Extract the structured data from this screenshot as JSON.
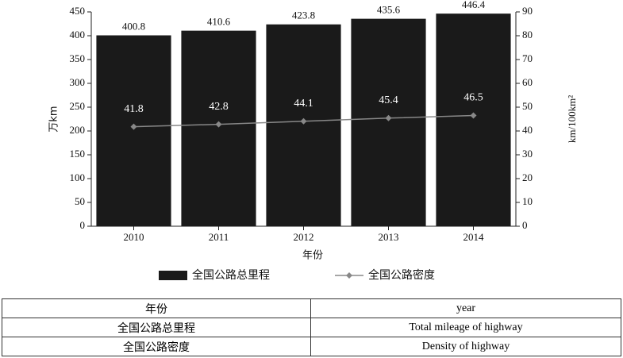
{
  "chart_data": {
    "type": "bar_line",
    "categories": [
      "2010",
      "2011",
      "2012",
      "2013",
      "2014"
    ],
    "xlabel": "年份",
    "ylabel": "万km",
    "y2label": "km/100km²",
    "series": [
      {
        "name": "全国公路总里程",
        "type": "bar",
        "color": "#1a1a1a",
        "values": [
          400.8,
          410.6,
          423.8,
          435.6,
          446.4
        ]
      },
      {
        "name": "全国公路密度",
        "type": "line",
        "axis": "y2",
        "color": "#888888",
        "values": [
          41.8,
          42.8,
          44.1,
          45.4,
          46.5
        ]
      }
    ],
    "ylim": [
      0,
      450
    ],
    "yticks": [
      0,
      50,
      100,
      150,
      200,
      250,
      300,
      350,
      400,
      450
    ],
    "y2lim": [
      0,
      90
    ],
    "y2ticks": [
      0,
      10,
      20,
      30,
      40,
      50,
      60,
      70,
      80,
      90
    ],
    "legend": "bottom"
  },
  "table": {
    "rows": [
      [
        "年份",
        "year"
      ],
      [
        "全国公路总里程",
        "Total mileage of highway"
      ],
      [
        "全国公路密度",
        "Density of highway"
      ]
    ]
  }
}
